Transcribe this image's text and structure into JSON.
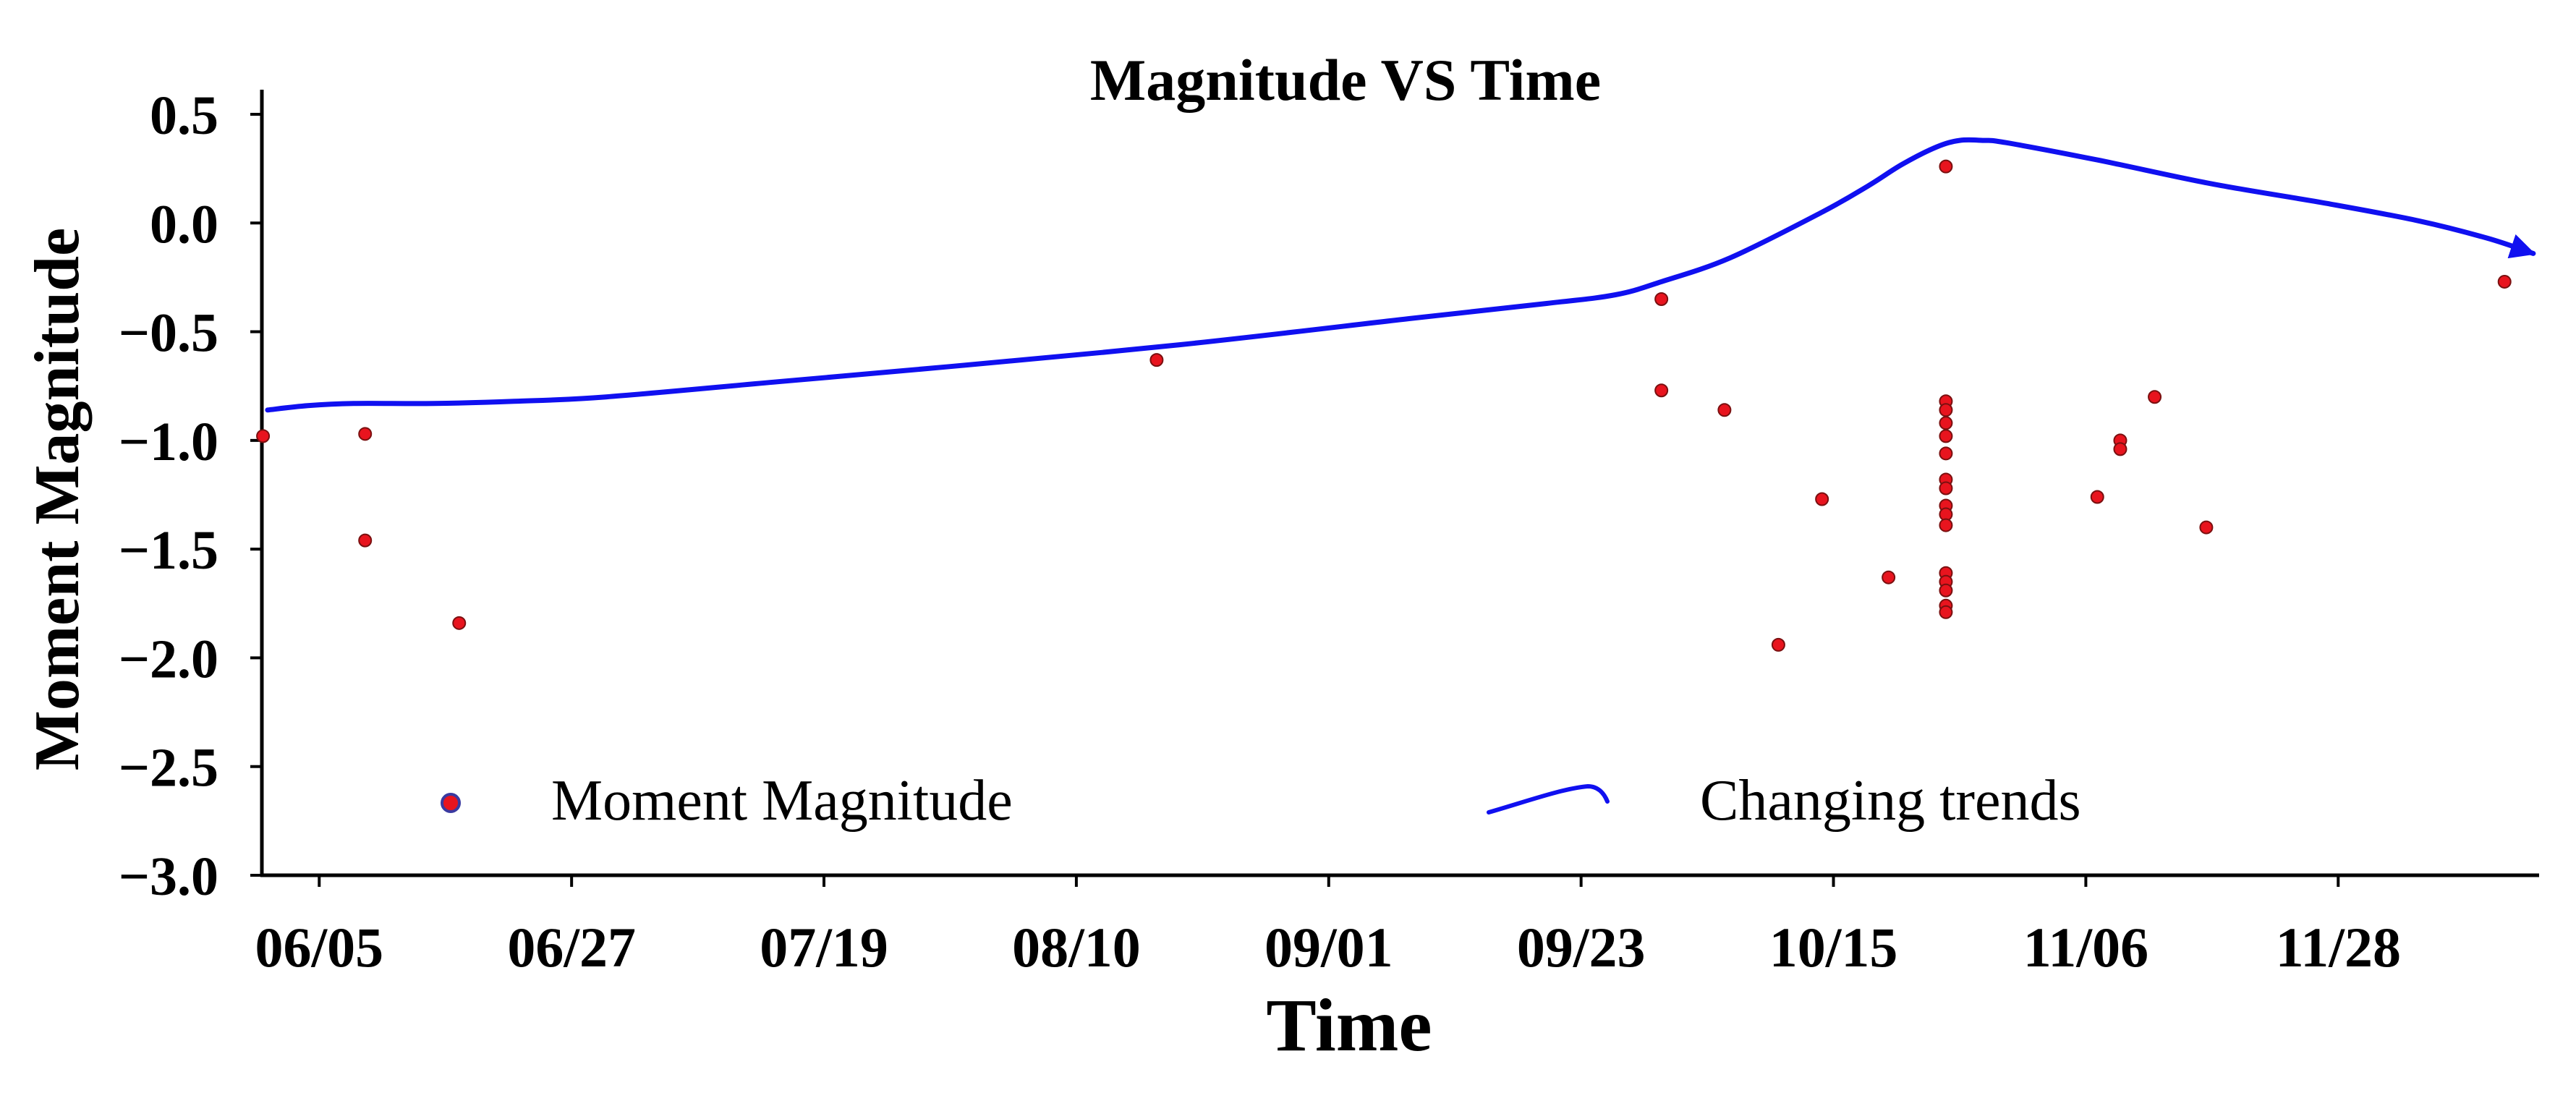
{
  "chart_data": {
    "type": "scatter",
    "title": "Magnitude VS Time",
    "xlabel": "Time",
    "ylabel": "Moment Magnitude",
    "x_unit": "days since 05/31",
    "xlim": [
      0,
      197
    ],
    "ylim": [
      -3.0,
      0.5
    ],
    "y_ticks": [
      0.5,
      0.0,
      -0.5,
      -1.0,
      -1.5,
      -2.0,
      -2.5,
      -3.0
    ],
    "y_tick_labels": [
      "0.5",
      "0.0",
      "−0.5",
      "−1.0",
      "−1.5",
      "−2.0",
      "−2.5",
      "−3.0"
    ],
    "x_ticks": [
      {
        "label": "06/05",
        "x": 5
      },
      {
        "label": "06/27",
        "x": 27
      },
      {
        "label": "07/19",
        "x": 49
      },
      {
        "label": "08/10",
        "x": 71
      },
      {
        "label": "09/01",
        "x": 93
      },
      {
        "label": "09/23",
        "x": 115
      },
      {
        "label": "10/15",
        "x": 137
      },
      {
        "label": "11/06",
        "x": 159
      },
      {
        "label": "11/28",
        "x": 181
      }
    ],
    "series": [
      {
        "name": "Moment Magnitude",
        "kind": "scatter",
        "color": "#e8141e",
        "edge_color": "#7a1010",
        "points": [
          [
            0.1,
            -0.98
          ],
          [
            9.0,
            -0.97
          ],
          [
            9.0,
            -1.46
          ],
          [
            17.2,
            -1.84
          ],
          [
            78.0,
            -0.63
          ],
          [
            122.0,
            -0.35
          ],
          [
            122.0,
            -0.77
          ],
          [
            127.5,
            -0.86
          ],
          [
            132.2,
            -1.94
          ],
          [
            136.0,
            -1.27
          ],
          [
            141.8,
            -1.63
          ],
          [
            146.8,
            -0.82
          ],
          [
            146.8,
            -0.86
          ],
          [
            146.8,
            -0.92
          ],
          [
            146.8,
            -0.98
          ],
          [
            146.8,
            -1.06
          ],
          [
            146.8,
            -1.18
          ],
          [
            146.8,
            -1.22
          ],
          [
            146.8,
            -1.3
          ],
          [
            146.8,
            -1.34
          ],
          [
            146.8,
            -1.39
          ],
          [
            146.8,
            -1.61
          ],
          [
            146.8,
            -1.65
          ],
          [
            146.8,
            -1.69
          ],
          [
            146.8,
            -1.76
          ],
          [
            146.8,
            -1.79
          ],
          [
            146.8,
            0.26
          ],
          [
            160.0,
            -1.26
          ],
          [
            162.0,
            -1.0
          ],
          [
            162.0,
            -1.04
          ],
          [
            165.0,
            -0.8
          ],
          [
            169.5,
            -1.4
          ],
          [
            195.5,
            -0.27
          ]
        ]
      },
      {
        "name": "Changing trends",
        "kind": "line",
        "color": "#1010f0",
        "arrow": true,
        "points": [
          [
            0.5,
            -0.86
          ],
          [
            4,
            -0.84
          ],
          [
            8,
            -0.83
          ],
          [
            15,
            -0.83
          ],
          [
            22,
            -0.82
          ],
          [
            30,
            -0.8
          ],
          [
            45,
            -0.73
          ],
          [
            60,
            -0.66
          ],
          [
            80,
            -0.56
          ],
          [
            100,
            -0.44
          ],
          [
            112,
            -0.37
          ],
          [
            118,
            -0.33
          ],
          [
            122,
            -0.27
          ],
          [
            128,
            -0.16
          ],
          [
            136,
            0.05
          ],
          [
            140,
            0.17
          ],
          [
            143,
            0.27
          ],
          [
            146,
            0.35
          ],
          [
            148,
            0.38
          ],
          [
            150,
            0.38
          ],
          [
            152,
            0.37
          ],
          [
            160,
            0.29
          ],
          [
            170,
            0.18
          ],
          [
            180,
            0.09
          ],
          [
            188,
            0.01
          ],
          [
            194,
            -0.07
          ],
          [
            198,
            -0.14
          ]
        ]
      }
    ],
    "legend": {
      "placement": "bottom",
      "entries": [
        {
          "label": "Moment Magnitude",
          "marker": "dot"
        },
        {
          "label": "Changing trends",
          "marker": "line"
        }
      ]
    },
    "grid": false
  }
}
